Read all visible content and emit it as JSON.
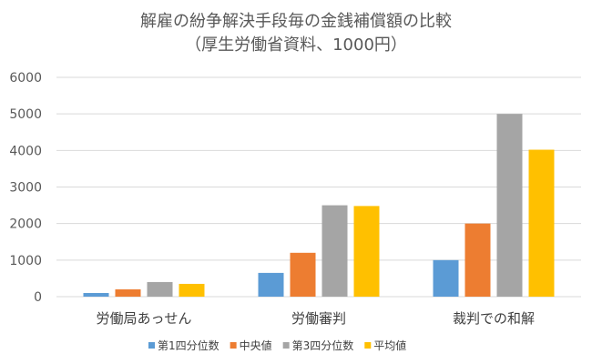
{
  "chart_data": {
    "type": "bar",
    "title": "解雇の紛争解決手段毎の金銭補償額の比較",
    "subtitle": "（厚生労働省資料、1000円）",
    "xlabel": "",
    "ylabel": "",
    "ylim": [
      0,
      6000
    ],
    "yticks": [
      0,
      1000,
      2000,
      3000,
      4000,
      5000,
      6000
    ],
    "grid": true,
    "legend_position": "bottom",
    "categories": [
      "労働局あっせん",
      "労働審判",
      "裁判での和解"
    ],
    "series": [
      {
        "name": "第1四分位数",
        "color": "#5B9BD5",
        "values": [
          100,
          650,
          1000
        ]
      },
      {
        "name": "中央値",
        "color": "#ED7D31",
        "values": [
          200,
          1200,
          2000
        ]
      },
      {
        "name": "第3四分位数",
        "color": "#A5A5A5",
        "values": [
          400,
          2500,
          5000
        ]
      },
      {
        "name": "平均値",
        "color": "#FFC000",
        "values": [
          350,
          2480,
          4020
        ]
      }
    ]
  }
}
